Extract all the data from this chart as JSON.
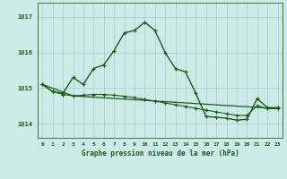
{
  "title": "Graphe pression niveau de la mer (hPa)",
  "bg_color": "#cceae7",
  "grid_color": "#aacccc",
  "line_color": "#1a5c1a",
  "xlim": [
    -0.5,
    23.5
  ],
  "ylim": [
    1013.6,
    1017.4
  ],
  "yticks": [
    1014,
    1015,
    1016,
    1017
  ],
  "xticks": [
    0,
    1,
    2,
    3,
    4,
    5,
    6,
    7,
    8,
    9,
    10,
    11,
    12,
    13,
    14,
    15,
    16,
    17,
    18,
    19,
    20,
    21,
    22,
    23
  ],
  "line1_x": [
    0,
    1,
    2,
    3,
    4,
    5,
    6,
    7,
    8,
    9,
    10,
    11,
    12,
    13,
    14,
    15,
    16,
    17,
    18,
    19,
    20,
    21,
    22,
    23
  ],
  "line1_y": [
    1015.1,
    1014.9,
    1014.85,
    1015.3,
    1015.1,
    1015.55,
    1015.65,
    1016.05,
    1016.55,
    1016.62,
    1016.85,
    1016.62,
    1016.0,
    1015.55,
    1015.45,
    1014.85,
    1014.2,
    1014.18,
    1014.15,
    1014.1,
    1014.12,
    1014.7,
    1014.45,
    1014.45
  ],
  "line2_x": [
    0,
    1,
    2,
    3,
    4,
    5,
    6,
    7,
    8,
    9,
    10,
    11,
    12,
    13,
    14,
    15,
    16,
    17,
    18,
    19,
    20,
    21,
    22,
    23
  ],
  "line2_y": [
    1015.1,
    1014.9,
    1014.82,
    1014.78,
    1014.8,
    1014.82,
    1014.82,
    1014.8,
    1014.77,
    1014.73,
    1014.68,
    1014.63,
    1014.58,
    1014.53,
    1014.48,
    1014.43,
    1014.38,
    1014.33,
    1014.28,
    1014.23,
    1014.23,
    1014.5,
    1014.42,
    1014.42
  ],
  "line3_x": [
    0,
    3,
    23
  ],
  "line3_y": [
    1015.1,
    1014.78,
    1014.42
  ]
}
